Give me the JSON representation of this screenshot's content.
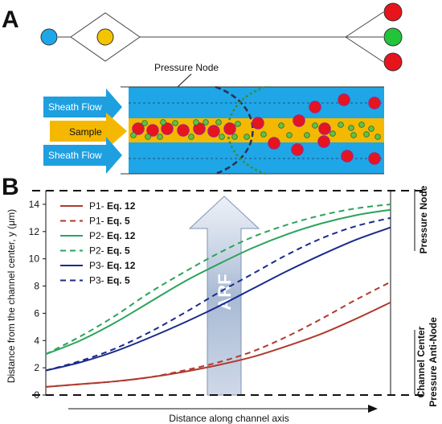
{
  "panel_a": {
    "label": "A",
    "pressure_node_label": "Pressure Node",
    "sheath_flow_top": "Sheath Flow",
    "sample_label": "Sample",
    "sheath_flow_bottom": "Sheath Flow",
    "colors": {
      "channel": "#1fa6e6",
      "sample_stream": "#f5b800",
      "sheath_arrow": "#1e9fe0",
      "sample_arrow": "#f5b800",
      "large_particle": "#e8141c",
      "small_particle": "#5fc04a",
      "particle_outline": "#b21f6e",
      "inlet_left": "#1ea7e8",
      "inlet_center": "#f5c400",
      "outlet_top": "#e8141c",
      "outlet_middle": "#22c43a",
      "outlet_bottom": "#e8141c"
    }
  },
  "panel_b": {
    "label": "B",
    "arf_label": "ARF",
    "right_label_top": "Pressure Node",
    "right_label_bottom_1": "Channel Center",
    "right_label_bottom_2": "Pressure Anti-Node"
  },
  "chart_data": {
    "type": "line",
    "xlabel": "Distance along channel axis",
    "ylabel": "Distance from the channel center, y (μm)",
    "ylim": [
      0,
      15
    ],
    "yticks": [
      0,
      2,
      4,
      6,
      8,
      10,
      12,
      14
    ],
    "x": [
      0,
      0.1,
      0.2,
      0.3,
      0.4,
      0.5,
      0.6,
      0.7,
      0.8,
      0.9,
      1.0
    ],
    "series": [
      {
        "name": "P1- Eq. 12",
        "label_plain": "P1- ",
        "label_bold": "Eq. 12",
        "color": "#b03a2e",
        "dash": "solid",
        "values": [
          0.6,
          0.8,
          1.0,
          1.3,
          1.7,
          2.2,
          2.8,
          3.6,
          4.5,
          5.6,
          6.8
        ]
      },
      {
        "name": "P1- Eq. 5",
        "label_plain": "P1- ",
        "label_bold": "Eq. 5",
        "color": "#b03a2e",
        "dash": "dashed",
        "values": [
          0.6,
          0.8,
          1.0,
          1.3,
          1.8,
          2.4,
          3.2,
          4.3,
          5.6,
          7.0,
          8.3
        ]
      },
      {
        "name": "P2- Eq. 12",
        "label_plain": "P2- ",
        "label_bold": "Eq. 12",
        "color": "#2ca35a",
        "dash": "solid",
        "values": [
          3.0,
          4.0,
          5.3,
          6.8,
          8.3,
          9.6,
          10.8,
          11.8,
          12.6,
          13.2,
          13.6
        ]
      },
      {
        "name": "P2- Eq. 5",
        "label_plain": "P2- ",
        "label_bold": "Eq. 5",
        "color": "#2ca35a",
        "dash": "dashed",
        "values": [
          3.0,
          4.3,
          5.8,
          7.5,
          9.0,
          10.4,
          11.6,
          12.5,
          13.2,
          13.7,
          14.0
        ]
      },
      {
        "name": "P3- Eq. 12",
        "label_plain": "P3- ",
        "label_bold": "Eq. 12",
        "color": "#1a2b8c",
        "dash": "solid",
        "values": [
          1.8,
          2.4,
          3.2,
          4.2,
          5.3,
          6.5,
          7.8,
          9.1,
          10.3,
          11.4,
          12.3
        ]
      },
      {
        "name": "P3- Eq. 5",
        "label_plain": "P3- ",
        "label_bold": "Eq. 5",
        "color": "#1a2b8c",
        "dash": "dashed",
        "values": [
          1.8,
          2.5,
          3.4,
          4.6,
          6.0,
          7.5,
          8.9,
          10.3,
          11.5,
          12.4,
          13.0
        ]
      }
    ],
    "reference_lines": [
      0,
      15
    ],
    "legend_placement": "top-left",
    "grid": false
  }
}
